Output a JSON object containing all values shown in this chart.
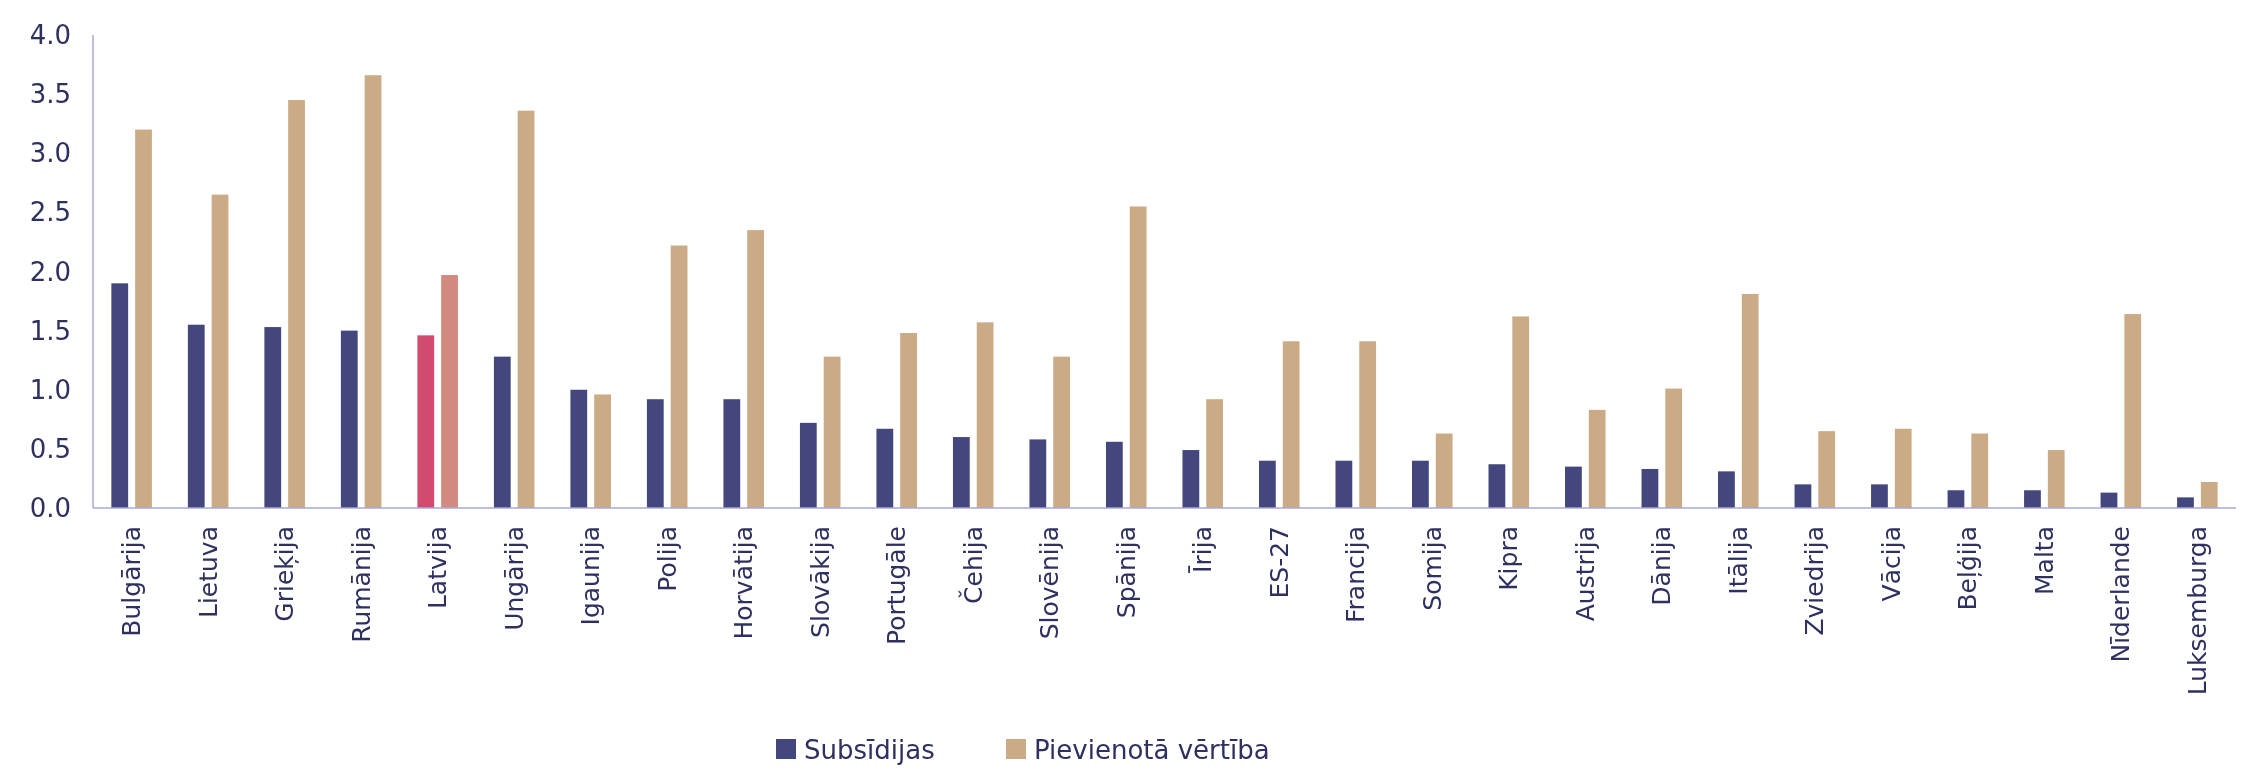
{
  "chart_data": {
    "type": "bar",
    "categories": [
      "Bulgārija",
      "Lietuva",
      "Grieķija",
      "Rumānija",
      "Latvija",
      "Ungārija",
      "Igaunija",
      "Polija",
      "Horvātija",
      "Slovākija",
      "Portugāle",
      "Čehija",
      "Slovēnija",
      "Spānija",
      "Īrija",
      "ES-27",
      "Francija",
      "Somija",
      "Kipra",
      "Austrija",
      "Dānija",
      "Itālija",
      "Zviedrija",
      "Vācija",
      "Beļģija",
      "Malta",
      "Nīderlande",
      "Luksemburga"
    ],
    "series": [
      {
        "name": "Subsīdijas",
        "color": "#44467e",
        "colors": [
          "#44467e",
          "#44467e",
          "#44467e",
          "#44467e",
          "#d24b6e",
          "#44467e",
          "#44467e",
          "#44467e",
          "#44467e",
          "#44467e",
          "#44467e",
          "#44467e",
          "#44467e",
          "#44467e",
          "#44467e",
          "#44467e",
          "#44467e",
          "#44467e",
          "#44467e",
          "#44467e",
          "#44467e",
          "#44467e",
          "#44467e",
          "#44467e",
          "#44467e",
          "#44467e",
          "#44467e",
          "#44467e"
        ],
        "values": [
          1.9,
          1.55,
          1.53,
          1.5,
          1.46,
          1.28,
          1.0,
          0.92,
          0.92,
          0.72,
          0.67,
          0.6,
          0.58,
          0.56,
          0.49,
          0.4,
          0.4,
          0.4,
          0.37,
          0.35,
          0.33,
          0.31,
          0.2,
          0.2,
          0.15,
          0.15,
          0.13,
          0.09
        ]
      },
      {
        "name": "Pievienotā vērtība",
        "color": "#cbab85",
        "colors": [
          "#cbab85",
          "#cbab85",
          "#cbab85",
          "#cbab85",
          "#d28a80",
          "#cbab85",
          "#cbab85",
          "#cbab85",
          "#cbab85",
          "#cbab85",
          "#cbab85",
          "#cbab85",
          "#cbab85",
          "#cbab85",
          "#cbab85",
          "#cbab85",
          "#cbab85",
          "#cbab85",
          "#cbab85",
          "#cbab85",
          "#cbab85",
          "#cbab85",
          "#cbab85",
          "#cbab85",
          "#cbab85",
          "#cbab85",
          "#cbab85",
          "#cbab85"
        ],
        "values": [
          3.2,
          2.65,
          3.45,
          3.66,
          1.97,
          3.36,
          0.96,
          2.22,
          2.35,
          1.28,
          1.48,
          1.57,
          1.28,
          2.55,
          0.92,
          1.41,
          1.41,
          0.63,
          1.62,
          0.83,
          1.01,
          1.81,
          0.65,
          0.67,
          0.63,
          0.49,
          1.64,
          0.22
        ]
      }
    ],
    "ylim": [
      0,
      4
    ],
    "yticks": [
      {
        "value": 0,
        "label": "0.0"
      },
      {
        "value": 0.5,
        "label": "0.5"
      },
      {
        "value": 1,
        "label": "1.0"
      },
      {
        "value": 1.5,
        "label": "1.5"
      },
      {
        "value": 2,
        "label": "2.0"
      },
      {
        "value": 2.5,
        "label": "2.5"
      },
      {
        "value": 3,
        "label": "3.0"
      },
      {
        "value": 3.5,
        "label": "3.5"
      },
      {
        "value": 4,
        "label": "4.0"
      }
    ],
    "legend": "bottom"
  }
}
